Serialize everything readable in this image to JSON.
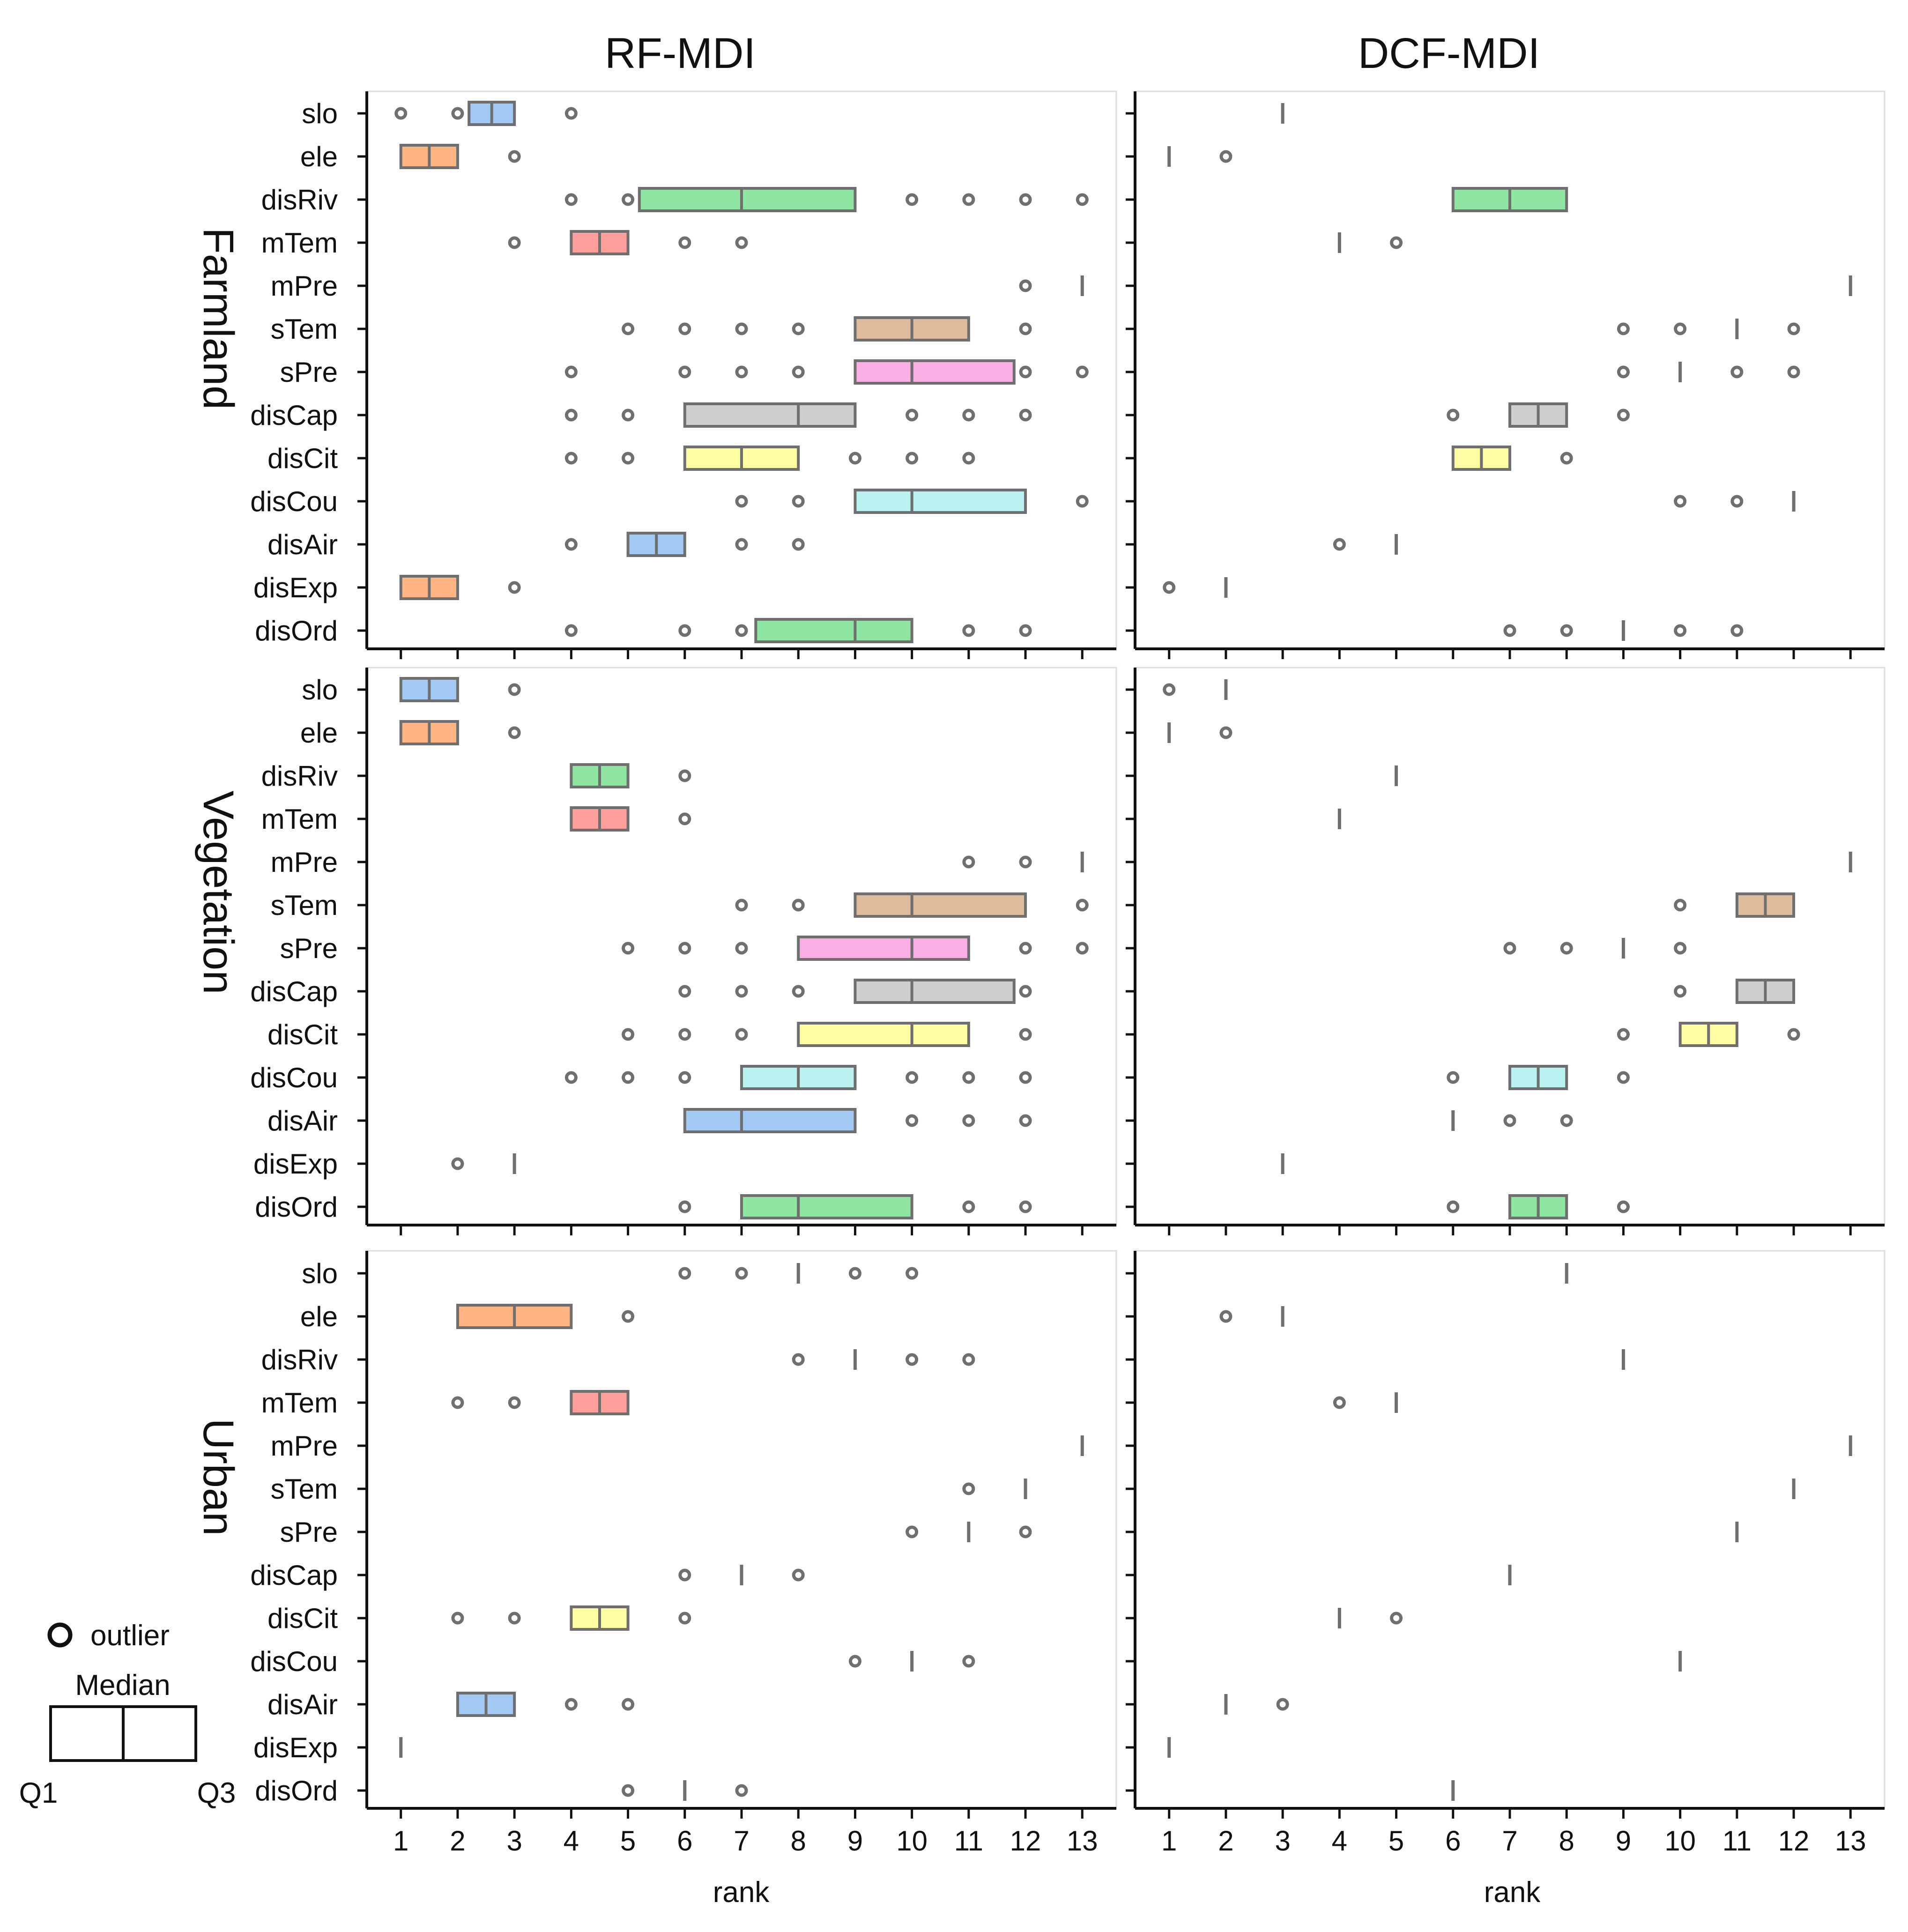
{
  "chart_data": {
    "type": "box",
    "variables": [
      "slo",
      "ele",
      "disRiv",
      "mTem",
      "mPre",
      "sTem",
      "sPre",
      "disCap",
      "disCit",
      "disCou",
      "disAir",
      "disExp",
      "disOrd"
    ],
    "column_titles": [
      "RF-MDI",
      "DCF-MDI"
    ],
    "row_titles": [
      "Farmland",
      "Vegetation",
      "Urban"
    ],
    "xlabel": "rank",
    "xticks": [
      1,
      2,
      3,
      4,
      5,
      6,
      7,
      8,
      9,
      10,
      11,
      12,
      13
    ],
    "xlim": [
      0.4,
      13.6
    ],
    "box_colors": [
      "#a1c9f4",
      "#ffb482",
      "#8de5a1",
      "#ff9f9b",
      "#d0bbff",
      "#debb9b",
      "#fab0e4",
      "#cfcfcf",
      "#fffea3",
      "#b9f2f0",
      "#a1c9f4",
      "#ffb482",
      "#8de5a1"
    ],
    "legend": {
      "outlier": "outlier",
      "median": "Median",
      "q1": "Q1",
      "q3": "Q3"
    },
    "panels": [
      {
        "row": "Farmland",
        "col": "RF-MDI",
        "boxes": [
          {
            "q1": 2.2,
            "med": 2.6,
            "q3": 3,
            "outliers": [
              1,
              2,
              4
            ]
          },
          {
            "q1": 1,
            "med": 1.5,
            "q3": 2,
            "outliers": [
              3
            ]
          },
          {
            "q1": 5.2,
            "med": 7,
            "q3": 9,
            "outliers": [
              4,
              5,
              10,
              11,
              12,
              13
            ]
          },
          {
            "q1": 4,
            "med": 4.5,
            "q3": 5,
            "outliers": [
              3,
              6,
              7
            ]
          },
          {
            "q1": 13,
            "med": 13,
            "q3": 13,
            "outliers": [
              12
            ]
          },
          {
            "q1": 9,
            "med": 10,
            "q3": 11,
            "outliers": [
              5,
              6,
              7,
              8,
              12
            ]
          },
          {
            "q1": 9,
            "med": 10,
            "q3": 11.8,
            "outliers": [
              4,
              6,
              7,
              8,
              12,
              13
            ]
          },
          {
            "q1": 6,
            "med": 8,
            "q3": 9,
            "outliers": [
              4,
              5,
              10,
              11,
              12
            ]
          },
          {
            "q1": 6,
            "med": 7,
            "q3": 8,
            "outliers": [
              4,
              5,
              9,
              10,
              11
            ]
          },
          {
            "q1": 9,
            "med": 10,
            "q3": 12,
            "outliers": [
              7,
              8,
              13
            ]
          },
          {
            "q1": 5,
            "med": 5.5,
            "q3": 6,
            "outliers": [
              4,
              7,
              8
            ]
          },
          {
            "q1": 1,
            "med": 1.5,
            "q3": 2,
            "outliers": [
              3
            ]
          },
          {
            "q1": 7.25,
            "med": 9,
            "q3": 10,
            "outliers": [
              4,
              6,
              7,
              11,
              12
            ]
          }
        ]
      },
      {
        "row": "Farmland",
        "col": "DCF-MDI",
        "boxes": [
          {
            "q1": 3,
            "med": 3,
            "q3": 3,
            "outliers": []
          },
          {
            "q1": 1,
            "med": 1,
            "q3": 1,
            "outliers": [
              2
            ]
          },
          {
            "q1": 6,
            "med": 7,
            "q3": 8,
            "outliers": []
          },
          {
            "q1": 4,
            "med": 4,
            "q3": 4,
            "outliers": [
              5
            ]
          },
          {
            "q1": 13,
            "med": 13,
            "q3": 13,
            "outliers": []
          },
          {
            "q1": 11,
            "med": 11,
            "q3": 11,
            "outliers": [
              9,
              10,
              12
            ]
          },
          {
            "q1": 10,
            "med": 10,
            "q3": 10,
            "outliers": [
              9,
              11,
              12
            ]
          },
          {
            "q1": 7,
            "med": 7.5,
            "q3": 8,
            "outliers": [
              6,
              9
            ]
          },
          {
            "q1": 6,
            "med": 6.5,
            "q3": 7,
            "outliers": [
              8
            ]
          },
          {
            "q1": 12,
            "med": 12,
            "q3": 12,
            "outliers": [
              10,
              11
            ]
          },
          {
            "q1": 5,
            "med": 5,
            "q3": 5,
            "outliers": [
              4
            ]
          },
          {
            "q1": 2,
            "med": 2,
            "q3": 2,
            "outliers": [
              1
            ]
          },
          {
            "q1": 9,
            "med": 9,
            "q3": 9,
            "outliers": [
              7,
              8,
              10,
              11
            ]
          }
        ]
      },
      {
        "row": "Vegetation",
        "col": "RF-MDI",
        "boxes": [
          {
            "q1": 1,
            "med": 1.5,
            "q3": 2,
            "outliers": [
              3
            ]
          },
          {
            "q1": 1,
            "med": 1.5,
            "q3": 2,
            "outliers": [
              3
            ]
          },
          {
            "q1": 4,
            "med": 4.5,
            "q3": 5,
            "outliers": [
              6
            ]
          },
          {
            "q1": 4,
            "med": 4.5,
            "q3": 5,
            "outliers": [
              6
            ]
          },
          {
            "q1": 13,
            "med": 13,
            "q3": 13,
            "outliers": [
              11,
              12
            ]
          },
          {
            "q1": 9,
            "med": 10,
            "q3": 12,
            "outliers": [
              7,
              8,
              13
            ]
          },
          {
            "q1": 8,
            "med": 10,
            "q3": 11,
            "outliers": [
              5,
              6,
              7,
              12,
              13
            ]
          },
          {
            "q1": 9,
            "med": 10,
            "q3": 11.8,
            "outliers": [
              6,
              7,
              8,
              12
            ]
          },
          {
            "q1": 8,
            "med": 10,
            "q3": 11,
            "outliers": [
              5,
              6,
              7,
              12
            ]
          },
          {
            "q1": 7,
            "med": 8,
            "q3": 9,
            "outliers": [
              4,
              5,
              6,
              10,
              11,
              12
            ]
          },
          {
            "q1": 6,
            "med": 7,
            "q3": 9,
            "outliers": [
              10,
              11,
              12
            ]
          },
          {
            "q1": 3,
            "med": 3,
            "q3": 3,
            "outliers": [
              2
            ]
          },
          {
            "q1": 7,
            "med": 8,
            "q3": 10,
            "outliers": [
              6,
              11,
              12
            ]
          }
        ]
      },
      {
        "row": "Vegetation",
        "col": "DCF-MDI",
        "boxes": [
          {
            "q1": 2,
            "med": 2,
            "q3": 2,
            "outliers": [
              1
            ]
          },
          {
            "q1": 1,
            "med": 1,
            "q3": 1,
            "outliers": [
              2
            ]
          },
          {
            "q1": 5,
            "med": 5,
            "q3": 5,
            "outliers": []
          },
          {
            "q1": 4,
            "med": 4,
            "q3": 4,
            "outliers": []
          },
          {
            "q1": 13,
            "med": 13,
            "q3": 13,
            "outliers": []
          },
          {
            "q1": 11,
            "med": 11.5,
            "q3": 12,
            "outliers": [
              10
            ]
          },
          {
            "q1": 9,
            "med": 9,
            "q3": 9,
            "outliers": [
              7,
              8,
              10
            ]
          },
          {
            "q1": 11,
            "med": 11.5,
            "q3": 12,
            "outliers": [
              10
            ]
          },
          {
            "q1": 10,
            "med": 10.5,
            "q3": 11,
            "outliers": [
              9,
              12
            ]
          },
          {
            "q1": 7,
            "med": 7.5,
            "q3": 8,
            "outliers": [
              6,
              9
            ]
          },
          {
            "q1": 6,
            "med": 6,
            "q3": 6,
            "outliers": [
              7,
              8
            ]
          },
          {
            "q1": 3,
            "med": 3,
            "q3": 3,
            "outliers": []
          },
          {
            "q1": 7,
            "med": 7.5,
            "q3": 8,
            "outliers": [
              6,
              9
            ]
          }
        ]
      },
      {
        "row": "Urban",
        "col": "RF-MDI",
        "boxes": [
          {
            "q1": 8,
            "med": 8,
            "q3": 8,
            "outliers": [
              6,
              7,
              9,
              10
            ]
          },
          {
            "q1": 2,
            "med": 3,
            "q3": 4,
            "outliers": [
              5
            ]
          },
          {
            "q1": 9,
            "med": 9,
            "q3": 9,
            "outliers": [
              8,
              10,
              11
            ]
          },
          {
            "q1": 4,
            "med": 4.5,
            "q3": 5,
            "outliers": [
              2,
              3
            ]
          },
          {
            "q1": 13,
            "med": 13,
            "q3": 13,
            "outliers": []
          },
          {
            "q1": 12,
            "med": 12,
            "q3": 12,
            "outliers": [
              11
            ]
          },
          {
            "q1": 11,
            "med": 11,
            "q3": 11,
            "outliers": [
              10,
              12
            ]
          },
          {
            "q1": 7,
            "med": 7,
            "q3": 7,
            "outliers": [
              6,
              8
            ]
          },
          {
            "q1": 4,
            "med": 4.5,
            "q3": 5,
            "outliers": [
              2,
              3,
              6
            ]
          },
          {
            "q1": 10,
            "med": 10,
            "q3": 10,
            "outliers": [
              9,
              11
            ]
          },
          {
            "q1": 2,
            "med": 2.5,
            "q3": 3,
            "outliers": [
              4,
              5
            ]
          },
          {
            "q1": 1,
            "med": 1,
            "q3": 1,
            "outliers": []
          },
          {
            "q1": 6,
            "med": 6,
            "q3": 6,
            "outliers": [
              5,
              7
            ]
          }
        ]
      },
      {
        "row": "Urban",
        "col": "DCF-MDI",
        "boxes": [
          {
            "q1": 8,
            "med": 8,
            "q3": 8,
            "outliers": []
          },
          {
            "q1": 3,
            "med": 3,
            "q3": 3,
            "outliers": [
              2
            ]
          },
          {
            "q1": 9,
            "med": 9,
            "q3": 9,
            "outliers": []
          },
          {
            "q1": 5,
            "med": 5,
            "q3": 5,
            "outliers": [
              4
            ]
          },
          {
            "q1": 13,
            "med": 13,
            "q3": 13,
            "outliers": []
          },
          {
            "q1": 12,
            "med": 12,
            "q3": 12,
            "outliers": []
          },
          {
            "q1": 11,
            "med": 11,
            "q3": 11,
            "outliers": []
          },
          {
            "q1": 7,
            "med": 7,
            "q3": 7,
            "outliers": []
          },
          {
            "q1": 4,
            "med": 4,
            "q3": 4,
            "outliers": [
              5
            ]
          },
          {
            "q1": 10,
            "med": 10,
            "q3": 10,
            "outliers": []
          },
          {
            "q1": 2,
            "med": 2,
            "q3": 2,
            "outliers": [
              3
            ]
          },
          {
            "q1": 1,
            "med": 1,
            "q3": 1,
            "outliers": []
          },
          {
            "q1": 6,
            "med": 6,
            "q3": 6,
            "outliers": []
          }
        ]
      }
    ]
  }
}
